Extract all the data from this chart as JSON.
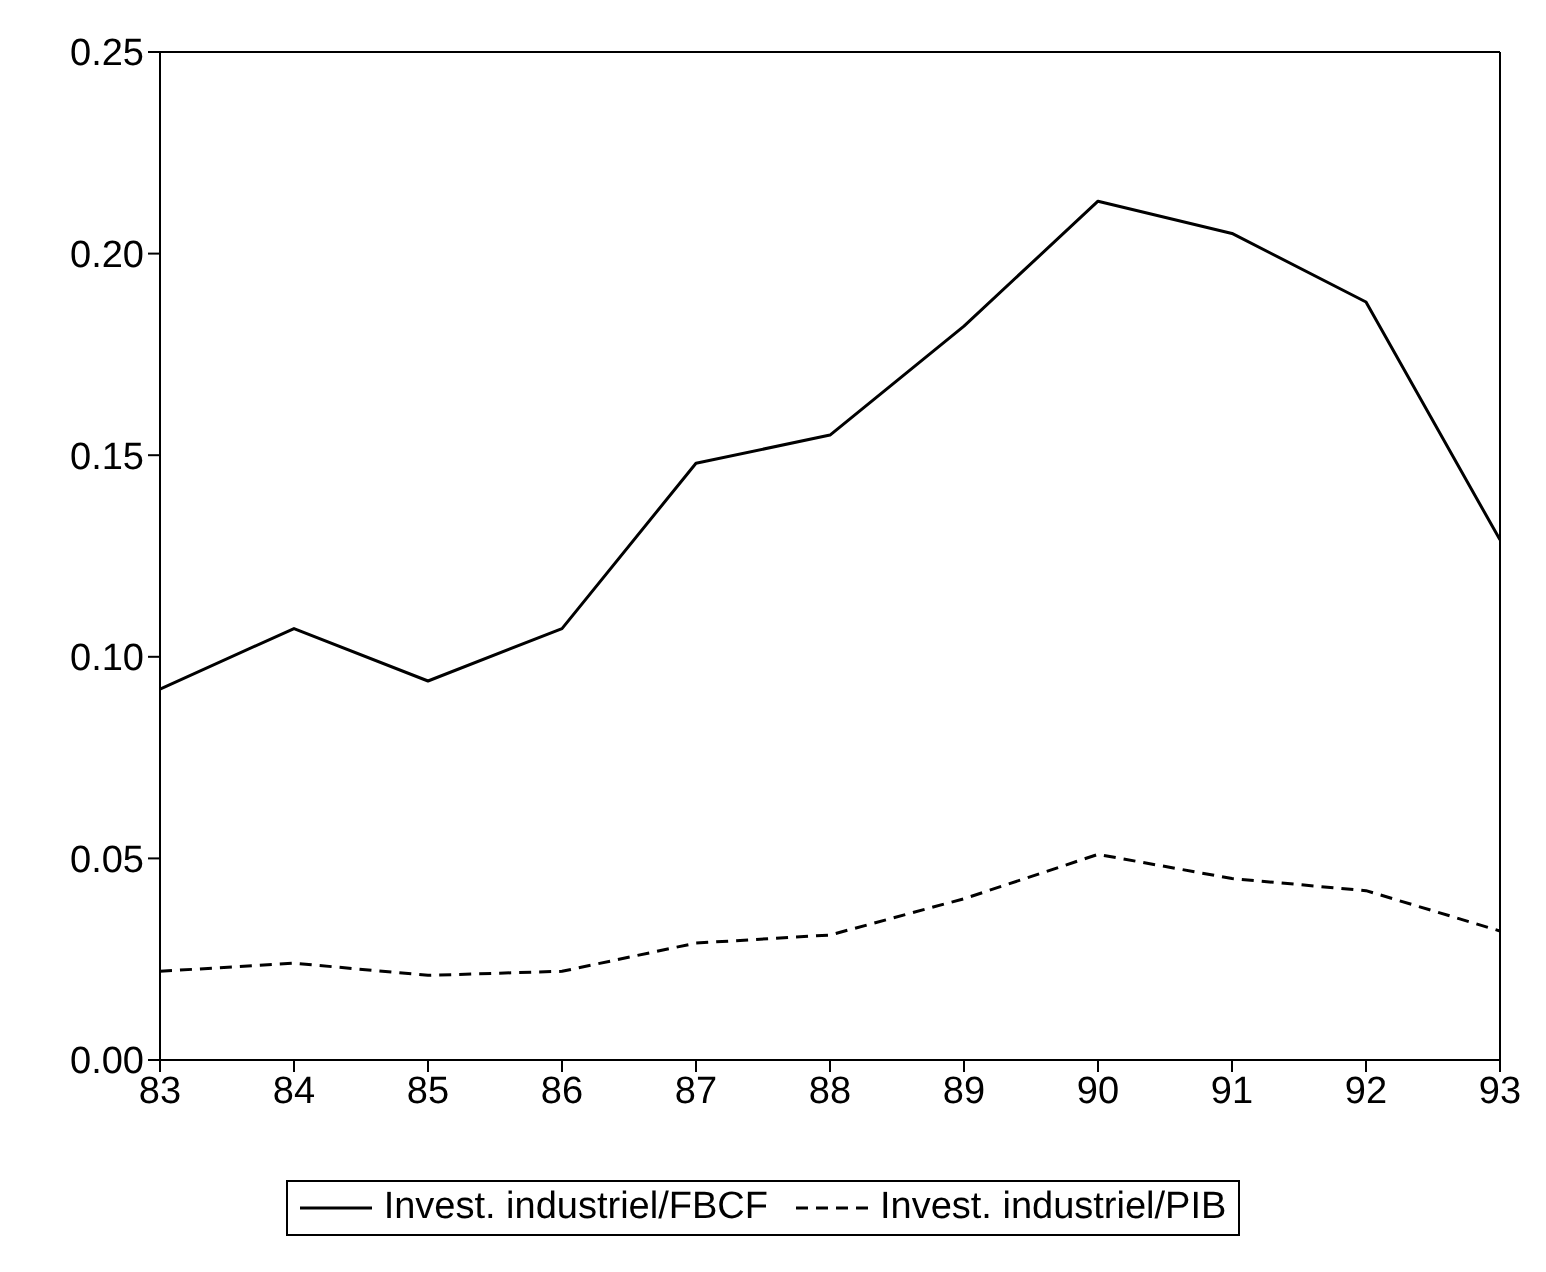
{
  "chart_data": {
    "type": "line",
    "x": [
      83,
      84,
      85,
      86,
      87,
      88,
      89,
      90,
      91,
      92,
      93
    ],
    "series": [
      {
        "name": "Invest. industriel/FBCF",
        "color": "#000000",
        "line_style": "solid",
        "values": [
          0.092,
          0.107,
          0.094,
          0.107,
          0.148,
          0.155,
          0.182,
          0.213,
          0.205,
          0.188,
          0.129
        ]
      },
      {
        "name": "Invest. industriel/PIB",
        "color": "#000000",
        "line_style": "dashed",
        "values": [
          0.022,
          0.024,
          0.021,
          0.022,
          0.029,
          0.031,
          0.04,
          0.051,
          0.045,
          0.042,
          0.032
        ]
      }
    ],
    "xlim": [
      83,
      93
    ],
    "xticks": [
      83,
      84,
      85,
      86,
      87,
      88,
      89,
      90,
      91,
      92,
      93
    ],
    "ylim": [
      0,
      0.25
    ],
    "yticks": [
      {
        "value": 0,
        "label": "0.00"
      },
      {
        "value": 0.05,
        "label": "0.05"
      },
      {
        "value": 0.1,
        "label": "0.10"
      },
      {
        "value": 0.15,
        "label": "0.15"
      },
      {
        "value": 0.2,
        "label": "0.20"
      },
      {
        "value": 0.25,
        "label": "0.25"
      }
    ],
    "grid": false,
    "legend": "bottom",
    "marker": "none"
  }
}
